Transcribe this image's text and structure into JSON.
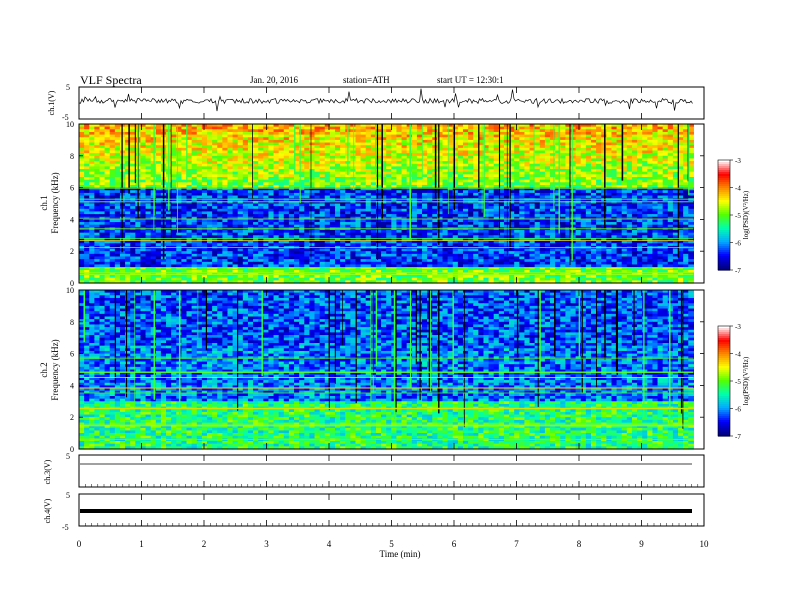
{
  "header": {
    "title": "VLF Spectra",
    "date": "Jan. 20, 2016",
    "station": "station=ATH",
    "start": "start  UT =   12:30:1"
  },
  "chart_data": {
    "type": "heatmap",
    "xlabel": "Time (min)",
    "xlim": [
      0,
      10
    ],
    "xticks": [
      "0",
      "1",
      "2",
      "3",
      "4",
      "5",
      "6",
      "7",
      "8",
      "9",
      "10"
    ],
    "data_end_min": 9.83,
    "panels": [
      {
        "kind": "waveform",
        "ylabel": "ch.1(V)",
        "ylim": [
          -5,
          5
        ],
        "yticks": [
          "5",
          "-5"
        ]
      },
      {
        "kind": "spectrogram",
        "ylabel_line1": "ch.1",
        "ylabel_line2": "Frequency (kHz)",
        "ylim": [
          0,
          10
        ],
        "yticks": [
          "0",
          "2",
          "4",
          "6",
          "8",
          "10"
        ]
      },
      {
        "kind": "spectrogram",
        "ylabel_line1": "ch.2",
        "ylabel_line2": "Frequency (kHz)",
        "ylim": [
          0,
          10
        ],
        "yticks": [
          "0",
          "2",
          "4",
          "6",
          "8",
          "10"
        ]
      },
      {
        "kind": "waveform",
        "ylabel": "ch.3(V)",
        "ylim": [
          -5,
          5
        ],
        "yticks": [
          "5",
          "-5"
        ]
      },
      {
        "kind": "waveform",
        "ylabel": "ch.4(V)",
        "ylim": [
          -5,
          5
        ],
        "yticks": [
          "5",
          "-5"
        ]
      }
    ],
    "colorbar": {
      "label": "log(PSD)(V²/Hz)",
      "range": [
        -7,
        -3
      ],
      "ticks": [
        "-3",
        "-4",
        "-5",
        "-6",
        "-7"
      ],
      "colors": [
        "#000080",
        "#0000ff",
        "#00aaff",
        "#00ffaa",
        "#55ff00",
        "#ffff00",
        "#ff8800",
        "#ff0000",
        "#ffffff"
      ]
    },
    "legend": "none",
    "grid": false
  }
}
